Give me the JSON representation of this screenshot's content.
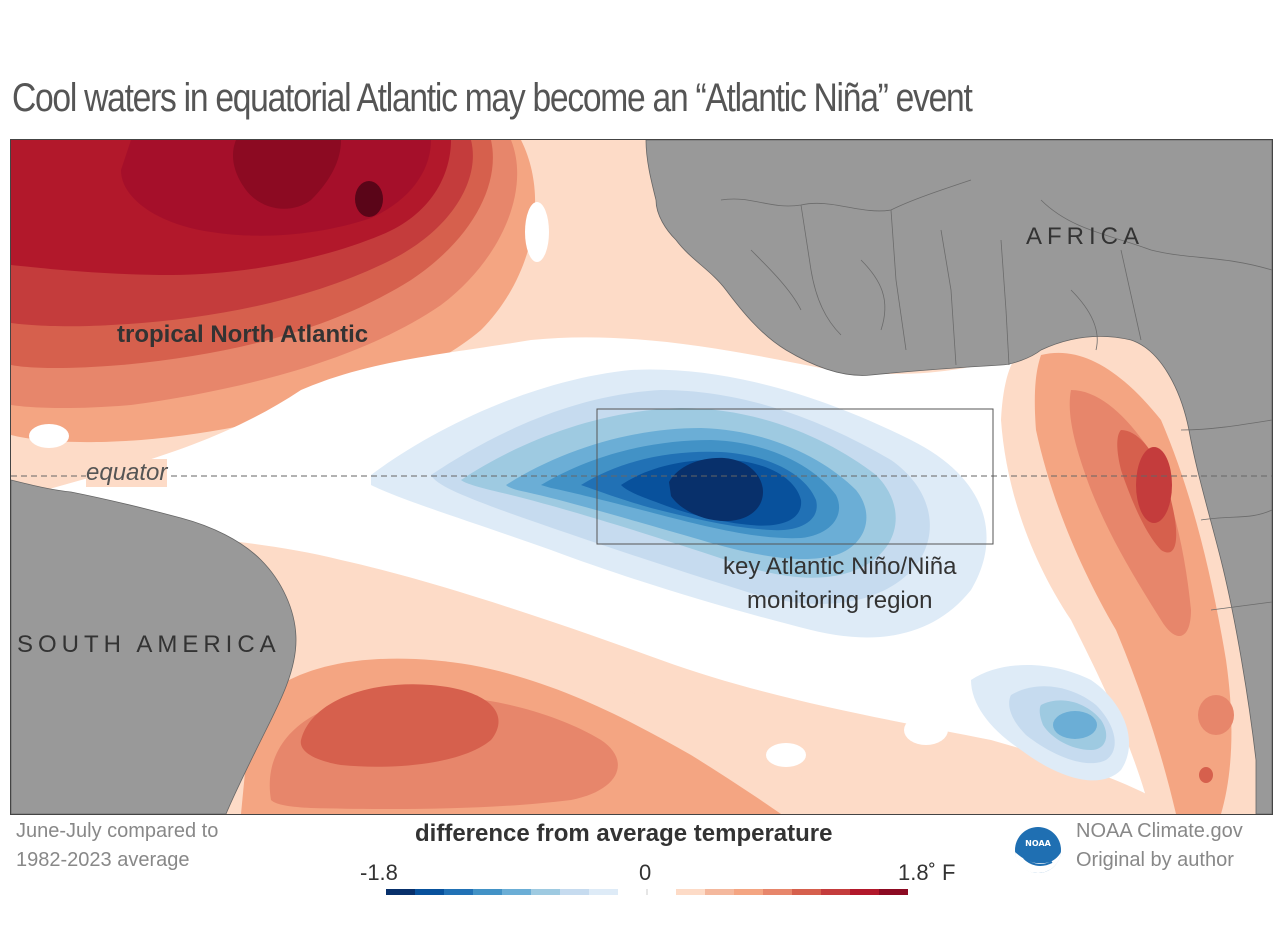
{
  "title": "Cool waters in equatorial Atlantic may become an “Atlantic Niña” event",
  "map": {
    "labels": {
      "africa": "AFRICA",
      "south_america": "SOUTH AMERICA",
      "tropical_north_atlantic": "tropical North Atlantic",
      "equator": "equator",
      "region_line1": "key Atlantic Niño/Niña",
      "region_line2": "monitoring region"
    },
    "colors": {
      "land": "#999999",
      "ocean_neutral": "#ffffff"
    }
  },
  "footnote": {
    "line1": "June-July compared to",
    "line2": "1982-2023 average"
  },
  "legend": {
    "title": "difference from average temperature",
    "min_label": "-1.8",
    "mid_label": "0",
    "max_label": "1.8˚ F",
    "range": [
      -1.8,
      1.8
    ],
    "colors": [
      "#08306b",
      "#08519c",
      "#2171b5",
      "#4292c6",
      "#6baed6",
      "#9ecae1",
      "#c6dbef",
      "#deebf7",
      "#ffffff",
      "#ffffff",
      "#fddbc7",
      "#f4b89d",
      "#f4a582",
      "#e7866b",
      "#d6604d",
      "#c43c3c",
      "#b2182b",
      "#8c0a22"
    ]
  },
  "credit": {
    "line1": "NOAA Climate.gov",
    "line2": "Original by author",
    "logo_text": "NOAA"
  }
}
